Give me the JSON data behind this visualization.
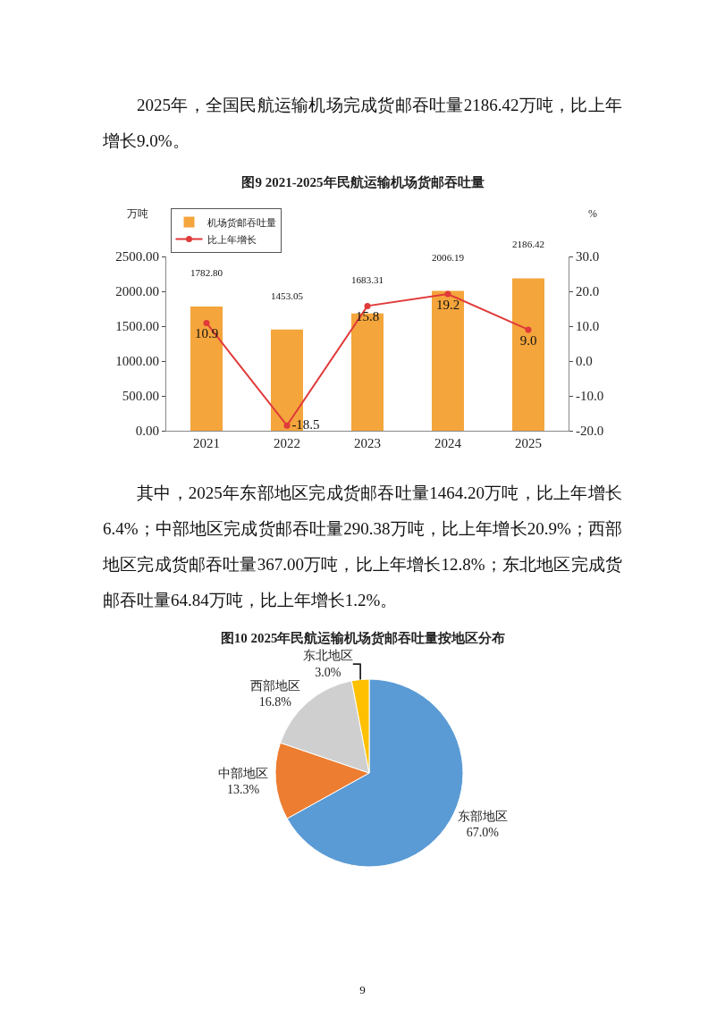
{
  "chart_data": [
    {
      "type": "bar",
      "title": "图9 2021-2025年民航运输机场货邮吞吐量",
      "ylabel": "万吨",
      "y2label": "%",
      "annotations": [
        "2025年，全国民航运输机场完成货邮吞吐量2186.42万吨，比上年增长9.0%。"
      ],
      "categories": [
        "2021",
        "2022",
        "2023",
        "2024",
        "2025"
      ],
      "series": [
        {
          "name": "机场货邮吞吐量",
          "type": "bar",
          "color": "#f4a53c",
          "values": [
            1782.8,
            1453.05,
            1683.31,
            2006.19,
            2186.42
          ],
          "value_labels": [
            "1782.80",
            "1453.05",
            "1683.31",
            "2006.19",
            "2186.42"
          ]
        },
        {
          "name": "比上年增长",
          "type": "line",
          "axis": "y2",
          "color": "#e03a3a",
          "values": [
            10.9,
            -18.5,
            15.8,
            19.2,
            9.0
          ],
          "value_labels": [
            "10.9",
            "-18.5",
            "15.8",
            "19.2",
            "9.0"
          ]
        }
      ],
      "ylim": [
        0,
        2500
      ],
      "yticks": [
        {
          "value": 0,
          "label": "0.00"
        },
        {
          "value": 500,
          "label": "500.00"
        },
        {
          "value": 1000,
          "label": "1000.00"
        },
        {
          "value": 1500,
          "label": "1500.00"
        },
        {
          "value": 2000,
          "label": "2000.00"
        },
        {
          "value": 2500,
          "label": "2500.00"
        }
      ],
      "y2lim": [
        -20,
        30
      ],
      "y2ticks": [
        {
          "value": -20,
          "label": "-20.0"
        },
        {
          "value": -10,
          "label": "-10.0"
        },
        {
          "value": 0,
          "label": "0.0"
        },
        {
          "value": 10,
          "label": "10.0"
        },
        {
          "value": 20,
          "label": "20.0"
        },
        {
          "value": 30,
          "label": "30.0"
        }
      ],
      "grid": false,
      "legend": "top left",
      "marker": "circle",
      "line_style": "solid",
      "data_labels": true
    },
    {
      "type": "pie",
      "title": "图10 2025年民航运输机场货邮吞吐量按地区分布",
      "annotations": [
        "其中，2025年东部地区完成货邮吞吐量1464.20万吨，比上年增长6.4%；中部地区完成货邮吞吐量290.38万吨，比上年增长20.9%；西部地区完成货邮吞吐量367.00万吨，比上年增长12.8%；东北地区完成货邮吞吐量64.84万吨，比上年增长1.2%。",
        "9"
      ],
      "categories": [
        "东部地区",
        "中部地区",
        "西部地区",
        "东北地区"
      ],
      "values": [
        67.0,
        13.3,
        16.8,
        3.0
      ],
      "value_labels": [
        "67.0%",
        "13.3%",
        "16.8%",
        "3.0%"
      ],
      "colors": [
        "#5b9bd5",
        "#ed7d31",
        "#cfcfcf",
        "#ffc000"
      ],
      "legend": false
    }
  ]
}
